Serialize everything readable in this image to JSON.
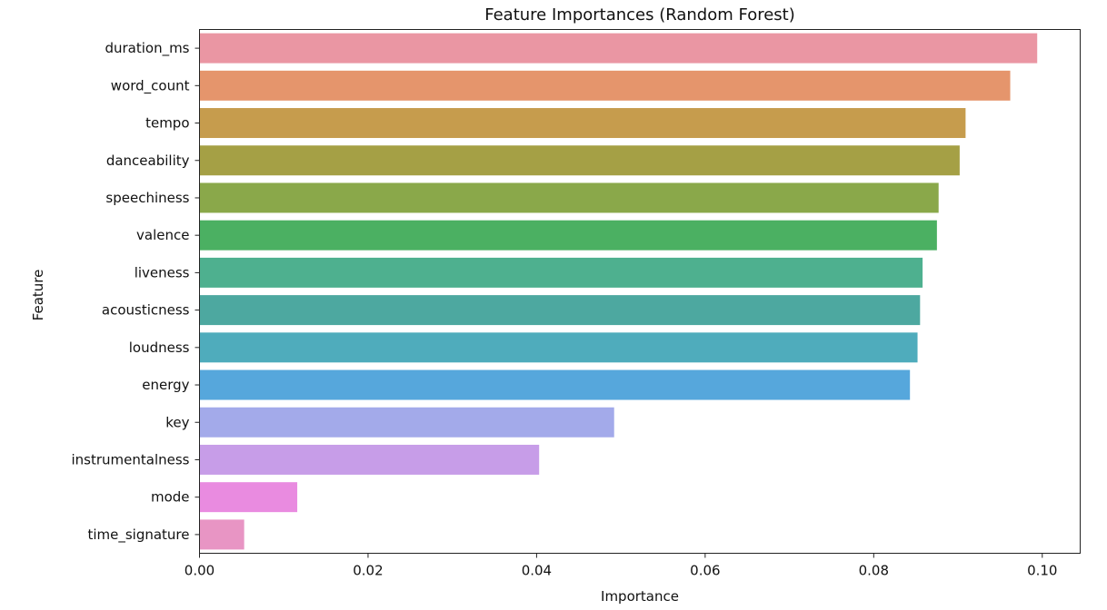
{
  "chart_data": {
    "type": "bar",
    "orientation": "horizontal",
    "title": "Feature Importances (Random Forest)",
    "xlabel": "Importance",
    "ylabel": "Feature",
    "xlim": [
      0,
      0.1045
    ],
    "xticks": [
      0.0,
      0.02,
      0.04,
      0.06,
      0.08,
      0.1
    ],
    "xtick_labels": [
      "0.00",
      "0.02",
      "0.04",
      "0.06",
      "0.08",
      "0.10"
    ],
    "grid": false,
    "legend": "none",
    "categories": [
      "duration_ms",
      "word_count",
      "tempo",
      "danceability",
      "speechiness",
      "valence",
      "liveness",
      "acousticness",
      "loudness",
      "energy",
      "key",
      "instrumentalness",
      "mode",
      "time_signature"
    ],
    "values": [
      0.0994,
      0.0962,
      0.0909,
      0.0902,
      0.0877,
      0.0875,
      0.0858,
      0.0855,
      0.0852,
      0.0843,
      0.0492,
      0.0403,
      0.0116,
      0.0053
    ],
    "colors": [
      "#EA96A3",
      "#E5956C",
      "#C69C4D",
      "#A5A045",
      "#8AA84A",
      "#4BB062",
      "#4EB08F",
      "#4DA8A0",
      "#4FACBC",
      "#56A7DC",
      "#A3AAEA",
      "#C79DE8",
      "#E98BE0",
      "#E895C4"
    ]
  }
}
